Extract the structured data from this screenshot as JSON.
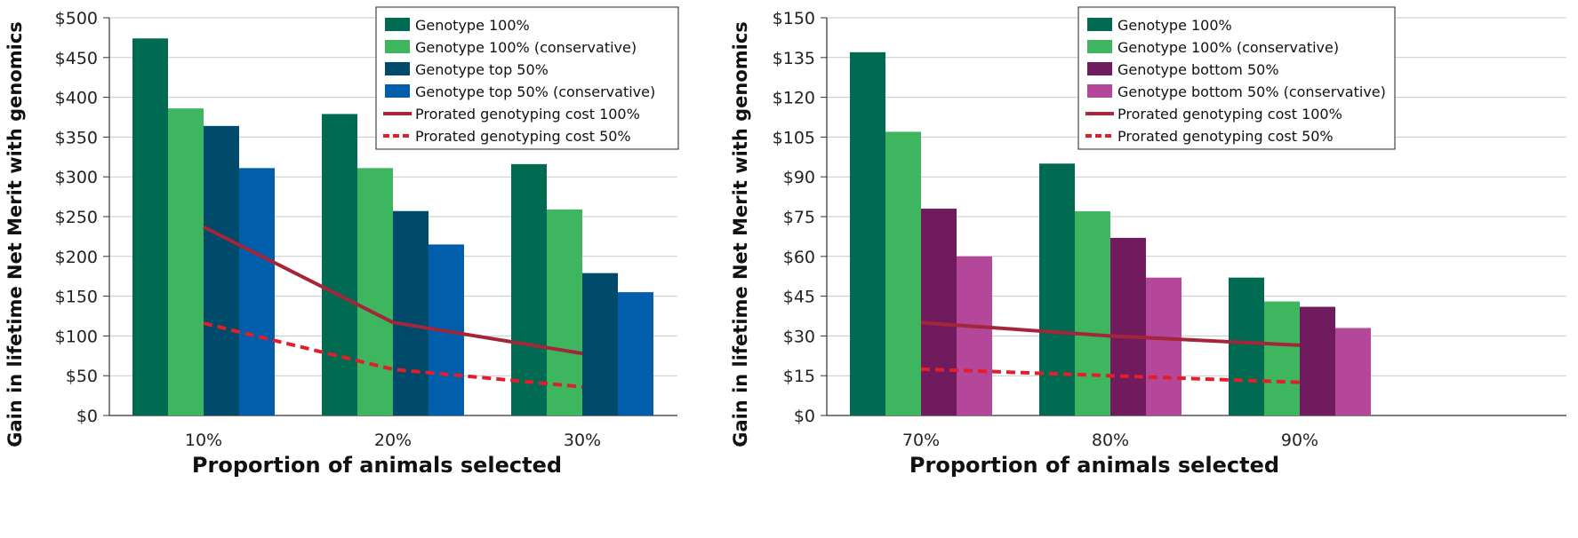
{
  "chart_data": [
    {
      "type": "bar",
      "categories": [
        "10%",
        "20%",
        "30%"
      ],
      "xlabel": "Proportion of animals selected",
      "ylabel": "Gain in lifetime Net Merit with genomics",
      "ylim": [
        0,
        500
      ],
      "yticks": [
        "$0",
        "$50",
        "$100",
        "$150",
        "$200",
        "$250",
        "$300",
        "$350",
        "$400",
        "$450",
        "$500"
      ],
      "grid": true,
      "legend_position": "top-right",
      "series": [
        {
          "name": "Genotype 100%",
          "color": "#006a52",
          "values": [
            474,
            379,
            316
          ]
        },
        {
          "name": "Genotype 100% (conservative)",
          "color": "#3db65f",
          "values": [
            386,
            311,
            259
          ]
        },
        {
          "name": "Genotype top 50%",
          "color": "#004b6b",
          "values": [
            364,
            257,
            179
          ]
        },
        {
          "name": "Genotype top 50% (conservative)",
          "color": "#005eab",
          "values": [
            311,
            215,
            155
          ]
        }
      ],
      "lines": [
        {
          "name": "Prorated genotyping cost 100%",
          "color": "#a3263b",
          "style": "solid",
          "values": [
            237,
            117,
            78
          ]
        },
        {
          "name": "Prorated genotyping cost 50%",
          "color": "#e11f2b",
          "style": "dashed",
          "values": [
            116,
            58,
            36
          ]
        }
      ]
    },
    {
      "type": "bar",
      "categories": [
        "70%",
        "80%",
        "90%"
      ],
      "xlabel": "Proportion of animals selected",
      "ylabel": "Gain in lifetime Net Merit with genomics",
      "ylim": [
        0,
        150
      ],
      "yticks": [
        "$0",
        "$15",
        "$30",
        "$45",
        "$60",
        "$75",
        "$90",
        "$105",
        "$120",
        "$135",
        "$150"
      ],
      "grid": true,
      "legend_position": "top-right",
      "series": [
        {
          "name": "Genotype 100%",
          "color": "#006a52",
          "values": [
            137,
            95,
            52
          ]
        },
        {
          "name": "Genotype 100% (conservative)",
          "color": "#3db65f",
          "values": [
            107,
            77,
            43
          ]
        },
        {
          "name": "Genotype bottom 50%",
          "color": "#701b5e",
          "values": [
            78,
            67,
            41
          ]
        },
        {
          "name": "Genotype bottom 50% (conservative)",
          "color": "#b44799",
          "values": [
            60,
            52,
            33
          ]
        }
      ],
      "lines": [
        {
          "name": "Prorated genotyping cost 100%",
          "color": "#a3263b",
          "style": "solid",
          "values": [
            35,
            30,
            26.5
          ]
        },
        {
          "name": "Prorated genotyping cost 50%",
          "color": "#e11f2b",
          "style": "dashed",
          "values": [
            17.5,
            15,
            12.5
          ]
        }
      ]
    }
  ]
}
